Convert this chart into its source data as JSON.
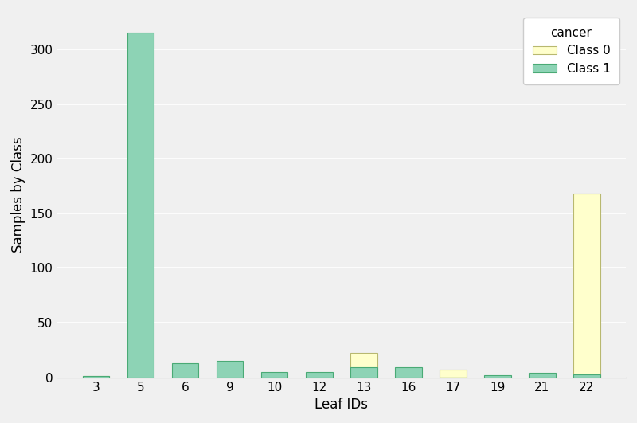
{
  "leaf_ids": [
    3,
    5,
    6,
    9,
    10,
    12,
    13,
    16,
    17,
    19,
    21,
    22
  ],
  "class0_values": [
    1,
    0,
    0,
    0,
    0,
    0,
    22,
    0,
    7,
    0,
    0,
    168
  ],
  "class1_values": [
    1,
    315,
    13,
    15,
    5,
    5,
    9,
    9,
    0,
    2,
    4,
    3
  ],
  "class0_color": "#ffffcc",
  "class1_color": "#8dd3b5",
  "class0_edge_color": "#b8b870",
  "class1_edge_color": "#4aaa75",
  "title": "",
  "xlabel": "Leaf IDs",
  "ylabel": "Samples by Class",
  "legend_title": "cancer",
  "legend_class0": "Class 0",
  "legend_class1": "Class 1",
  "bar_width": 0.6,
  "ylim": [
    0,
    335
  ],
  "background_color": "#f0f0f0",
  "axes_background": "#f0f0f0",
  "grid_color": "#ffffff"
}
